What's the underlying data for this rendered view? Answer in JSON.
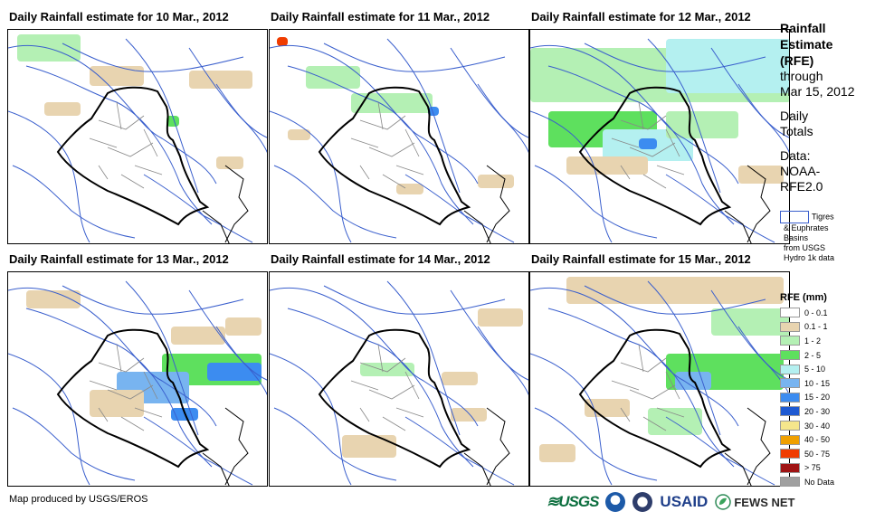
{
  "panels": [
    {
      "title": "Daily Rainfall estimate for 10 Mar., 2012"
    },
    {
      "title": "Daily Rainfall estimate for 11 Mar., 2012"
    },
    {
      "title": "Daily Rainfall estimate for 12 Mar., 2012"
    },
    {
      "title": "Daily Rainfall estimate for 13 Mar., 2012"
    },
    {
      "title": "Daily Rainfall estimate for 14 Mar., 2012"
    },
    {
      "title": "Daily Rainfall estimate for 15 Mar., 2012"
    }
  ],
  "side": {
    "heading_1": "Rainfall",
    "heading_2": "Estimate",
    "heading_3": "(RFE)",
    "through": "through",
    "date": "Mar 15, 2012",
    "daily_1": "Daily",
    "daily_2": "Totals",
    "data_1": "Data:",
    "data_2": "NOAA-",
    "data_3": "RFE2.0"
  },
  "basin_key": {
    "line_1": "Tigres",
    "line_2": "& Euphrates",
    "line_3": "Basins",
    "line_4": "from USGS",
    "line_5": "Hydro 1k data",
    "color": "#3a5fcd"
  },
  "legend": {
    "title": "RFE (mm)",
    "items": [
      {
        "label": "0 - 0.1",
        "color": "#ffffff"
      },
      {
        "label": "0.1 - 1",
        "color": "#e8d4b0"
      },
      {
        "label": "1 - 2",
        "color": "#b4f0b4"
      },
      {
        "label": "2 - 5",
        "color": "#5ee05e"
      },
      {
        "label": "5 - 10",
        "color": "#b4f0f0"
      },
      {
        "label": "10 - 15",
        "color": "#78b4f0"
      },
      {
        "label": "15 - 20",
        "color": "#3c8cf0"
      },
      {
        "label": "20 - 30",
        "color": "#1e5ad2"
      },
      {
        "label": "30 - 40",
        "color": "#f5e68c"
      },
      {
        "label": "40 - 50",
        "color": "#f0a000"
      },
      {
        "label": "50 - 75",
        "color": "#f03c00"
      },
      {
        "label": "> 75",
        "color": "#a01414"
      },
      {
        "label": "No Data",
        "color": "#a0a0a0"
      }
    ]
  },
  "credit": "Map produced by USGS/EROS",
  "logos": {
    "usgs": "≋USGS",
    "usaid": "USAID",
    "fews": "FEWS NET",
    "noaa_color": "#1d5aa8",
    "dhs_color": "#2e3d6b"
  }
}
